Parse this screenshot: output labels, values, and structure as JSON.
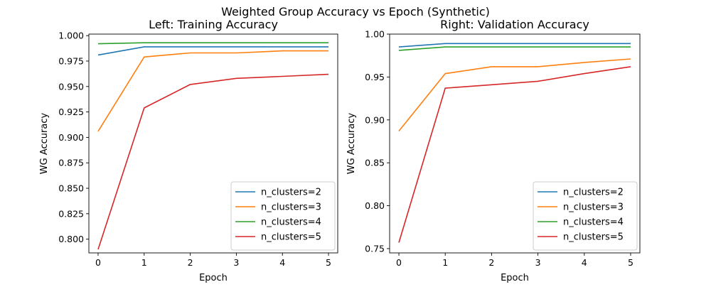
{
  "figure": {
    "suptitle": "Weighted Group Accuracy vs Epoch (Synthetic)"
  },
  "colors": {
    "n_clusters=2": "#1f77b4",
    "n_clusters=3": "#ff7f0e",
    "n_clusters=4": "#2ca02c",
    "n_clusters=5": "#d62728"
  },
  "chart_data": [
    {
      "type": "line",
      "title": "Left: Training Accuracy",
      "xlabel": "Epoch",
      "ylabel": "WG Accuracy",
      "x": [
        0,
        1,
        2,
        3,
        4,
        5
      ],
      "xlim": [
        -0.2,
        5.2
      ],
      "ylim": [
        0.7865,
        1.0015
      ],
      "xticks": [
        "0",
        "1",
        "2",
        "3",
        "4",
        "5"
      ],
      "yticks": [
        "0.800",
        "0.825",
        "0.850",
        "0.875",
        "0.900",
        "0.925",
        "0.950",
        "0.975",
        "1.000"
      ],
      "legend_position": "lower-right",
      "series": [
        {
          "name": "n_clusters=2",
          "values": [
            0.981,
            0.989,
            0.989,
            0.989,
            0.989,
            0.989
          ]
        },
        {
          "name": "n_clusters=3",
          "values": [
            0.906,
            0.979,
            0.983,
            0.983,
            0.985,
            0.985
          ]
        },
        {
          "name": "n_clusters=4",
          "values": [
            0.992,
            0.993,
            0.993,
            0.993,
            0.993,
            0.993
          ]
        },
        {
          "name": "n_clusters=5",
          "values": [
            0.79,
            0.929,
            0.952,
            0.958,
            0.96,
            0.962
          ]
        }
      ]
    },
    {
      "type": "line",
      "title": "Right: Validation Accuracy",
      "xlabel": "Epoch",
      "ylabel": "WG Accuracy",
      "x": [
        0,
        1,
        2,
        3,
        4,
        5
      ],
      "xlim": [
        -0.2,
        5.2
      ],
      "ylim": [
        0.745,
        1.0
      ],
      "xticks": [
        "0",
        "1",
        "2",
        "3",
        "4",
        "5"
      ],
      "yticks": [
        "0.75",
        "0.80",
        "0.85",
        "0.90",
        "0.95",
        "1.00"
      ],
      "legend_position": "lower-right",
      "series": [
        {
          "name": "n_clusters=2",
          "values": [
            0.985,
            0.989,
            0.989,
            0.989,
            0.989,
            0.989
          ]
        },
        {
          "name": "n_clusters=3",
          "values": [
            0.887,
            0.954,
            0.962,
            0.962,
            0.967,
            0.971
          ]
        },
        {
          "name": "n_clusters=4",
          "values": [
            0.981,
            0.985,
            0.985,
            0.985,
            0.985,
            0.985
          ]
        },
        {
          "name": "n_clusters=5",
          "values": [
            0.757,
            0.937,
            0.941,
            0.945,
            0.954,
            0.962
          ]
        }
      ]
    }
  ]
}
